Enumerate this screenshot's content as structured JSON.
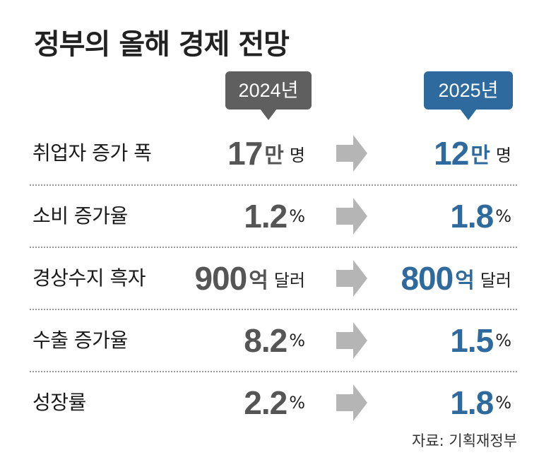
{
  "title": "정부의 올해 경제 전망",
  "years": {
    "prev": "2024년",
    "next": "2025년"
  },
  "colors": {
    "prev": "#5f5f5f",
    "next": "#2e6a9d",
    "arrow": "#b5b5b5"
  },
  "rows": [
    {
      "label": "취업자 증가 폭",
      "prev": {
        "num": "17",
        "unit": "만",
        "suffix": "명"
      },
      "next": {
        "num": "12",
        "unit": "만",
        "suffix": "명"
      }
    },
    {
      "label": "소비 증가율",
      "prev": {
        "num": "1.2",
        "pct": "%"
      },
      "next": {
        "num": "1.8",
        "pct": "%"
      }
    },
    {
      "label": "경상수지 흑자",
      "prev": {
        "num": "900",
        "unit": "억",
        "suffix": "달러"
      },
      "next": {
        "num": "800",
        "unit": "억",
        "suffix": "달러"
      }
    },
    {
      "label": "수출 증가율",
      "prev": {
        "num": "8.2",
        "pct": "%"
      },
      "next": {
        "num": "1.5",
        "pct": "%"
      }
    },
    {
      "label": "성장률",
      "prev": {
        "num": "2.2",
        "pct": "%"
      },
      "next": {
        "num": "1.8",
        "pct": "%"
      }
    }
  ],
  "source": "자료: 기획재정부",
  "chart_data": {
    "type": "table",
    "title": "정부의 올해 경제 전망",
    "columns": [
      "2024년",
      "2025년"
    ],
    "rows": [
      {
        "indicator": "취업자 증가 폭",
        "unit": "만 명",
        "values": [
          17,
          12
        ]
      },
      {
        "indicator": "소비 증가율",
        "unit": "%",
        "values": [
          1.2,
          1.8
        ]
      },
      {
        "indicator": "경상수지 흑자",
        "unit": "억 달러",
        "values": [
          900,
          800
        ]
      },
      {
        "indicator": "수출 증가율",
        "unit": "%",
        "values": [
          8.2,
          1.5
        ]
      },
      {
        "indicator": "성장률",
        "unit": "%",
        "values": [
          2.2,
          1.8
        ]
      }
    ],
    "source": "자료: 기획재정부"
  }
}
